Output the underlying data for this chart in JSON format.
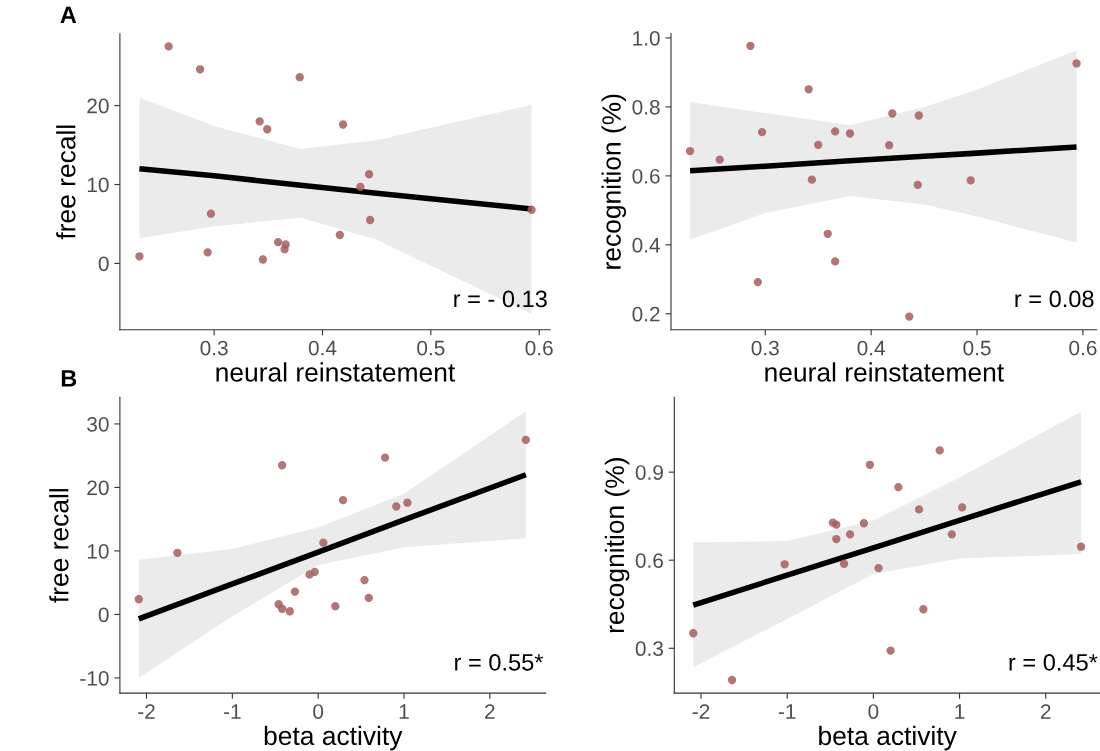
{
  "chart_data": [
    {
      "type": "scatter",
      "xlabel": "neural reinstatement",
      "ylabel": "free recall",
      "annotations": [
        "r = - 0.13",
        "A"
      ],
      "xlim": [
        0.213,
        0.61
      ],
      "ylim": [
        -8.4,
        29.1
      ],
      "xticks": [
        0.3,
        0.4,
        0.5,
        0.6
      ],
      "yticks": [
        0,
        10,
        20
      ],
      "grid": false,
      "series": [
        {
          "marker": "circle",
          "color": "#a65d5f",
          "x": [
            0.258,
            0.287,
            0.379,
            0.342,
            0.349,
            0.419,
            0.443,
            0.435,
            0.593,
            0.297,
            0.444,
            0.416,
            0.359,
            0.366,
            0.365,
            0.294,
            0.345,
            0.231
          ],
          "values": [
            27.5,
            24.6,
            23.6,
            18.0,
            17.0,
            17.6,
            11.3,
            9.7,
            6.8,
            6.3,
            5.5,
            3.6,
            2.7,
            2.4,
            1.8,
            1.4,
            0.5,
            0.9
          ]
        },
        {
          "type": "line",
          "color": "#000000",
          "x": [
            0.231,
            0.3,
            0.38,
            0.45,
            0.5,
            0.593
          ],
          "values": [
            12.0,
            11.1,
            9.9,
            8.9,
            8.2,
            6.9
          ],
          "lower": [
            3.2,
            4.7,
            5.8,
            3.0,
            -0.3,
            -6.4
          ],
          "upper": [
            21.0,
            17.4,
            14.5,
            15.6,
            17.2,
            20.1
          ]
        }
      ]
    },
    {
      "type": "scatter",
      "xlabel": "neural reinstatement",
      "ylabel": "recognition (%)",
      "annotations": [
        "r = 0.08"
      ],
      "xlim": [
        0.211,
        0.613
      ],
      "ylim": [
        0.154,
        1.012
      ],
      "xticks": [
        0.3,
        0.4,
        0.5,
        0.6
      ],
      "yticks": [
        0.2,
        0.4,
        0.6,
        0.8,
        {
          "value": 1,
          "label": "1.0"
        }
      ],
      "grid": false,
      "series": [
        {
          "marker": "circle",
          "color": "#a65d5f",
          "x": [
            0.286,
            0.341,
            0.594,
            0.42,
            0.445,
            0.297,
            0.366,
            0.38,
            0.35,
            0.417,
            0.229,
            0.257,
            0.344,
            0.444,
            0.494,
            0.359,
            0.366,
            0.293,
            0.436
          ],
          "values": [
            0.977,
            0.851,
            0.926,
            0.781,
            0.775,
            0.727,
            0.729,
            0.723,
            0.69,
            0.689,
            0.672,
            0.647,
            0.589,
            0.574,
            0.587,
            0.432,
            0.352,
            0.292,
            0.192
          ]
        },
        {
          "type": "line",
          "color": "#000000",
          "x": [
            0.229,
            0.3,
            0.38,
            0.45,
            0.5,
            0.594
          ],
          "values": [
            0.615,
            0.628,
            0.644,
            0.657,
            0.666,
            0.684
          ],
          "lower": [
            0.415,
            0.492,
            0.542,
            0.517,
            0.482,
            0.407
          ],
          "upper": [
            0.814,
            0.782,
            0.747,
            0.8,
            0.85,
            0.964
          ]
        }
      ]
    },
    {
      "type": "scatter",
      "xlabel": "beta activity",
      "ylabel": "free recall",
      "annotations": [
        "r = 0.55*",
        "B"
      ],
      "xlim": [
        -2.31,
        2.65
      ],
      "ylim": [
        -12.4,
        34.2
      ],
      "xticks": [
        -2,
        -1,
        0,
        1,
        2
      ],
      "yticks": [
        -10,
        0,
        10,
        20,
        30
      ],
      "grid": false,
      "series": [
        {
          "marker": "circle",
          "color": "#a65d5f",
          "x": [
            -2.09,
            -1.64,
            -0.42,
            0.78,
            2.42,
            0.29,
            0.91,
            1.04,
            0.06,
            -0.1,
            -0.04,
            0.54,
            0.59,
            -0.27,
            -0.46,
            -0.42,
            -0.33,
            0.2
          ],
          "values": [
            2.4,
            9.7,
            23.5,
            24.7,
            27.5,
            18.0,
            17.0,
            17.6,
            11.3,
            6.3,
            6.7,
            5.4,
            2.6,
            3.6,
            1.6,
            0.9,
            0.5,
            1.3
          ]
        },
        {
          "type": "line",
          "color": "#000000",
          "x": [
            -2.09,
            -1,
            0,
            1,
            2.42
          ],
          "values": [
            -0.7,
            4.8,
            9.8,
            14.9,
            22.0
          ],
          "lower": [
            -10.0,
            -0.3,
            7.8,
            10.6,
            12.0
          ],
          "upper": [
            8.6,
            10.3,
            13.7,
            19.0,
            32.0
          ]
        }
      ]
    },
    {
      "type": "scatter",
      "xlabel": "beta activity",
      "ylabel": "recognition (%)",
      "annotations": [
        "r = 0.45*"
      ],
      "xlim": [
        -2.31,
        2.63
      ],
      "ylim": [
        0.147,
        1.155
      ],
      "xticks": [
        -2,
        -1,
        0,
        1,
        2
      ],
      "yticks": [
        0.3,
        0.6,
        0.9
      ],
      "grid": false,
      "series": [
        {
          "marker": "circle",
          "color": "#a65d5f",
          "x": [
            -2.09,
            -1.64,
            -1.03,
            0.77,
            -0.04,
            0.29,
            0.53,
            1.03,
            -0.47,
            -0.43,
            -0.11,
            -0.43,
            -0.27,
            0.91,
            2.41,
            -0.34,
            0.06,
            0.58,
            0.2
          ],
          "values": [
            0.351,
            0.192,
            0.586,
            0.974,
            0.925,
            0.849,
            0.773,
            0.78,
            0.728,
            0.721,
            0.726,
            0.672,
            0.688,
            0.688,
            0.646,
            0.588,
            0.573,
            0.433,
            0.292
          ]
        },
        {
          "type": "line",
          "color": "#000000",
          "x": [
            -2.09,
            -1,
            0,
            1,
            2.41
          ],
          "values": [
            0.447,
            0.549,
            0.642,
            0.736,
            0.867
          ],
          "lower": [
            0.235,
            0.4,
            0.553,
            0.606,
            0.621
          ],
          "upper": [
            0.661,
            0.665,
            0.735,
            0.882,
            1.106
          ]
        }
      ]
    }
  ]
}
